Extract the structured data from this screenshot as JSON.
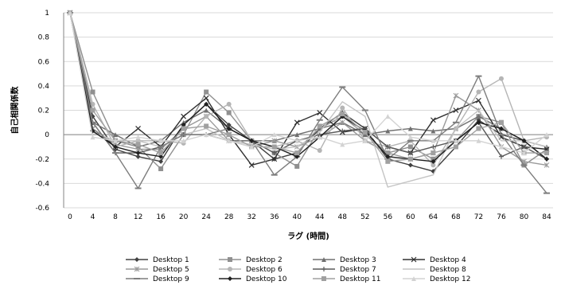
{
  "chart_data": {
    "type": "line",
    "xlabel": "ラグ (時間)",
    "ylabel": "自己相関係数",
    "x": [
      0,
      4,
      8,
      12,
      16,
      20,
      24,
      28,
      32,
      36,
      40,
      44,
      48,
      52,
      56,
      60,
      64,
      68,
      72,
      76,
      80,
      84
    ],
    "xticks": [
      "0",
      "4",
      "8",
      "12",
      "16",
      "20",
      "24",
      "28",
      "32",
      "36",
      "40",
      "44",
      "48",
      "52",
      "56",
      "60",
      "64",
      "68",
      "72",
      "76",
      "80",
      "84"
    ],
    "ylim": [
      -0.6,
      1.0
    ],
    "yticks": [
      -0.6,
      -0.4,
      -0.2,
      0,
      0.2,
      0.4,
      0.6,
      0.8,
      1
    ],
    "ytick_labels": [
      "-0.6",
      "-0.4",
      "-0.2",
      "0",
      "0.2",
      "0.4",
      "0.6",
      "0.8",
      "1"
    ],
    "grid": true,
    "legend_position": "bottom",
    "series": [
      {
        "name": "Desktop 1",
        "color": "#404040",
        "marker": "diamond",
        "values": [
          1.0,
          0.15,
          -0.12,
          -0.18,
          -0.22,
          0.08,
          0.25,
          0.08,
          -0.05,
          -0.2,
          -0.15,
          0.05,
          0.18,
          0.05,
          -0.2,
          -0.25,
          -0.3,
          -0.1,
          0.12,
          0.0,
          -0.05,
          -0.2
        ]
      },
      {
        "name": "Desktop 2",
        "color": "#909090",
        "marker": "square",
        "values": [
          1.0,
          0.35,
          -0.05,
          -0.1,
          -0.28,
          0.0,
          0.35,
          0.18,
          -0.05,
          -0.15,
          -0.26,
          0.05,
          0.15,
          0.0,
          -0.15,
          -0.1,
          -0.2,
          -0.05,
          0.15,
          0.1,
          -0.25,
          -0.12
        ]
      },
      {
        "name": "Desktop 3",
        "color": "#707070",
        "marker": "triangle",
        "values": [
          1.0,
          0.1,
          0.0,
          -0.1,
          -0.05,
          0.1,
          0.2,
          0.05,
          -0.05,
          -0.05,
          0.0,
          0.05,
          0.1,
          0.0,
          0.03,
          0.05,
          0.03,
          0.05,
          0.15,
          0.05,
          -0.05,
          -0.1
        ]
      },
      {
        "name": "Desktop 4",
        "color": "#303030",
        "marker": "x",
        "values": [
          1.0,
          0.05,
          -0.1,
          0.05,
          -0.1,
          0.15,
          0.3,
          0.0,
          -0.25,
          -0.2,
          0.1,
          0.18,
          0.02,
          0.05,
          -0.1,
          -0.15,
          0.12,
          0.2,
          0.28,
          -0.02,
          -0.1,
          -0.12
        ]
      },
      {
        "name": "Desktop 5",
        "color": "#9a9a9a",
        "marker": "star",
        "values": [
          1.0,
          0.05,
          -0.08,
          -0.12,
          -0.12,
          0.05,
          0.15,
          -0.05,
          -0.1,
          -0.05,
          -0.1,
          -0.02,
          0.1,
          -0.05,
          -0.15,
          -0.2,
          -0.15,
          0.32,
          0.2,
          -0.1,
          -0.22,
          -0.25
        ]
      },
      {
        "name": "Desktop 6",
        "color": "#b5b5b5",
        "marker": "circle",
        "values": [
          1.0,
          0.25,
          -0.1,
          -0.05,
          -0.05,
          -0.07,
          0.15,
          0.25,
          -0.05,
          -0.1,
          -0.05,
          -0.13,
          0.22,
          -0.05,
          -0.1,
          -0.05,
          -0.25,
          0.05,
          0.35,
          0.46,
          -0.05,
          -0.02
        ]
      },
      {
        "name": "Desktop 7",
        "color": "#5a5a5a",
        "marker": "plus",
        "values": [
          1.0,
          0.1,
          -0.15,
          -0.15,
          -0.1,
          0.0,
          0.0,
          -0.05,
          -0.05,
          -0.15,
          -0.05,
          0.0,
          0.03,
          0.05,
          -0.1,
          -0.15,
          -0.1,
          -0.05,
          0.1,
          -0.18,
          -0.1,
          -0.2
        ]
      },
      {
        "name": "Desktop 8",
        "color": "#c4c4c4",
        "marker": "none",
        "values": [
          1.0,
          0.02,
          -0.05,
          -0.05,
          -0.1,
          0.0,
          0.05,
          -0.05,
          -0.08,
          -0.12,
          -0.1,
          0.02,
          0.27,
          0.15,
          -0.43,
          -0.38,
          -0.33,
          0.05,
          0.2,
          -0.05,
          -0.05,
          -0.1
        ]
      },
      {
        "name": "Desktop 9",
        "color": "#7d7d7d",
        "marker": "dash",
        "values": [
          1.0,
          0.1,
          -0.15,
          -0.44,
          -0.1,
          0.0,
          0.0,
          0.05,
          -0.05,
          -0.33,
          -0.18,
          0.12,
          0.39,
          0.2,
          -0.2,
          -0.05,
          -0.05,
          0.1,
          0.48,
          0.0,
          -0.25,
          -0.48
        ]
      },
      {
        "name": "Desktop 10",
        "color": "#202020",
        "marker": "diamond",
        "values": [
          1.0,
          0.03,
          -0.1,
          -0.15,
          -0.18,
          0.08,
          0.25,
          0.05,
          -0.05,
          -0.1,
          -0.18,
          -0.02,
          0.15,
          0.03,
          -0.18,
          -0.2,
          -0.22,
          -0.05,
          0.1,
          0.05,
          -0.05,
          -0.2
        ]
      },
      {
        "name": "Desktop 11",
        "color": "#a0a0a0",
        "marker": "square",
        "values": [
          1.0,
          0.2,
          -0.05,
          -0.08,
          -0.15,
          0.05,
          0.07,
          0.0,
          -0.1,
          -0.1,
          -0.15,
          0.07,
          0.17,
          0.02,
          -0.22,
          -0.2,
          -0.15,
          -0.1,
          0.05,
          0.1,
          -0.15,
          -0.15
        ]
      },
      {
        "name": "Desktop 12",
        "color": "#d3d3d3",
        "marker": "triangle",
        "values": [
          1.0,
          -0.02,
          -0.05,
          -0.02,
          -0.05,
          -0.05,
          0.0,
          -0.05,
          -0.1,
          0.0,
          -0.05,
          -0.02,
          -0.08,
          -0.05,
          0.15,
          -0.02,
          -0.05,
          -0.05,
          -0.05,
          -0.1,
          -0.15,
          0.0
        ]
      }
    ]
  }
}
